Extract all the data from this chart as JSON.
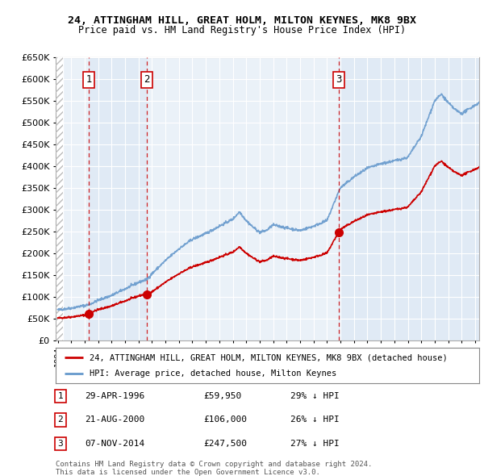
{
  "title1": "24, ATTINGHAM HILL, GREAT HOLM, MILTON KEYNES, MK8 9BX",
  "title2": "Price paid vs. HM Land Registry's House Price Index (HPI)",
  "sales": [
    {
      "num": 1,
      "date_str": "29-APR-1996",
      "year": 1996.33,
      "price": 59950,
      "pct": "29% ↓ HPI"
    },
    {
      "num": 2,
      "date_str": "21-AUG-2000",
      "year": 2000.64,
      "price": 106000,
      "pct": "26% ↓ HPI"
    },
    {
      "num": 3,
      "date_str": "07-NOV-2014",
      "year": 2014.85,
      "price": 247500,
      "pct": "27% ↓ HPI"
    }
  ],
  "legend_line1": "24, ATTINGHAM HILL, GREAT HOLM, MILTON KEYNES, MK8 9BX (detached house)",
  "legend_line2": "HPI: Average price, detached house, Milton Keynes",
  "footnote1": "Contains HM Land Registry data © Crown copyright and database right 2024.",
  "footnote2": "This data is licensed under the Open Government Licence v3.0.",
  "xmin": 1994.0,
  "xmax": 2025.3,
  "ymin": 0,
  "ymax": 650000,
  "red_color": "#cc0000",
  "blue_color": "#6699cc",
  "shade_color": "#dde8f5",
  "hatch_color": "#bbbbbb",
  "background_color": "#ffffff",
  "plot_bg": "#eaf1f8"
}
